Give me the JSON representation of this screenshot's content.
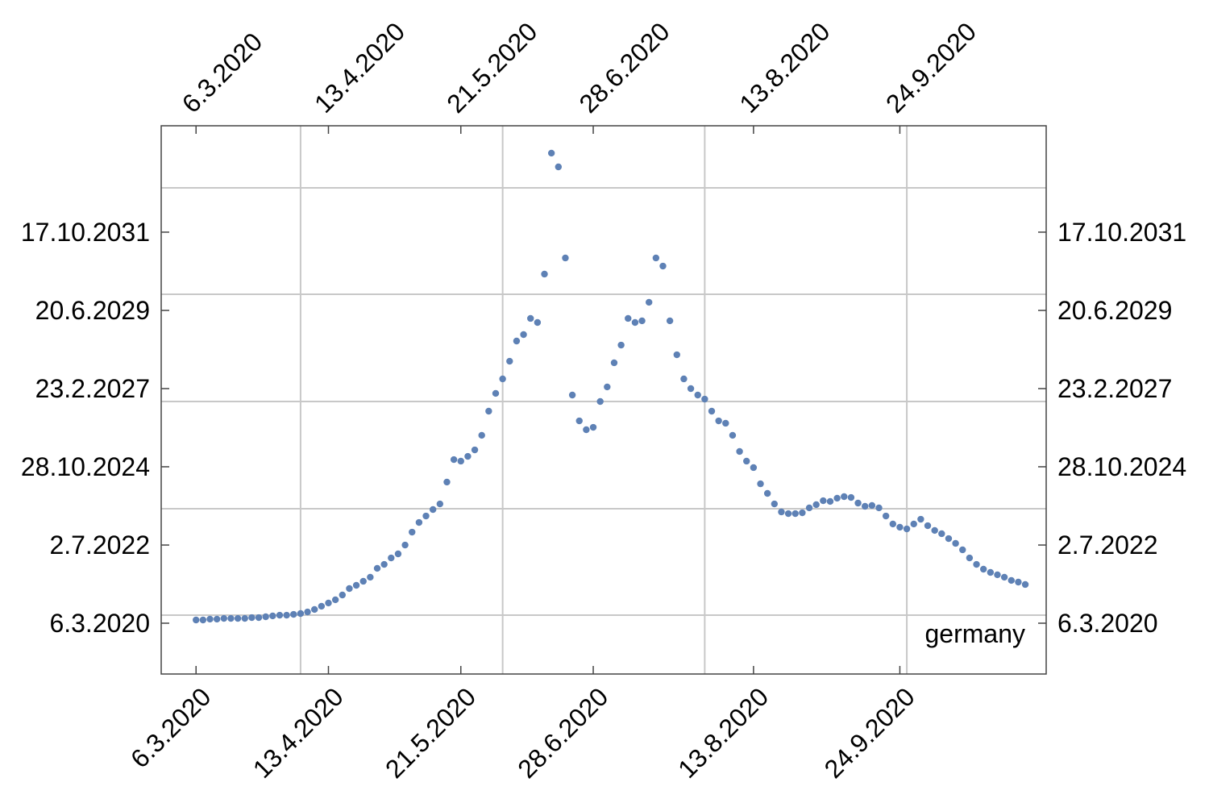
{
  "chart_data": {
    "type": "scatter",
    "annotation": "germany",
    "color": "#5e81b5",
    "xlim": [
      -10,
      244
    ],
    "ylim": [
      -551,
      5396
    ],
    "xticks": [
      {
        "value": 0,
        "label": "6.3.2020"
      },
      {
        "value": 38,
        "label": "13.4.2020"
      },
      {
        "value": 76,
        "label": "21.5.2020"
      },
      {
        "value": 114,
        "label": "28.6.2020"
      },
      {
        "value": 160,
        "label": "13.8.2020"
      },
      {
        "value": 202,
        "label": "24.9.2020"
      }
    ],
    "yticks": [
      {
        "value": 0,
        "label": "6.3.2020"
      },
      {
        "value": 848,
        "label": "2.7.2022"
      },
      {
        "value": 1697,
        "label": "28.10.2024"
      },
      {
        "value": 2545,
        "label": "23.2.2027"
      },
      {
        "value": 3393,
        "label": "20.6.2029"
      },
      {
        "value": 4242,
        "label": "17.10.2031"
      }
    ],
    "xgrid": [
      30,
      88,
      146,
      204
    ],
    "ygrid": [
      87,
      1242,
      2405,
      3568,
      4723
    ],
    "x": [
      0,
      2,
      4,
      6,
      8,
      10,
      12,
      14,
      16,
      18,
      20,
      22,
      24,
      26,
      28,
      30,
      32,
      34,
      36,
      38,
      40,
      42,
      44,
      46,
      48,
      50,
      52,
      54,
      56,
      58,
      60,
      62,
      64,
      66,
      68,
      70,
      72,
      74,
      76,
      78,
      80,
      82,
      84,
      86,
      88,
      90,
      92,
      94,
      96,
      98,
      100,
      102,
      104,
      106,
      108,
      110,
      112,
      114,
      116,
      118,
      120,
      122,
      124,
      126,
      128,
      130,
      132,
      134,
      136,
      138,
      140,
      142,
      144,
      146,
      148,
      150,
      152,
      154,
      156,
      158,
      160,
      162,
      164,
      166,
      168,
      170,
      172,
      174,
      176,
      178,
      180,
      182,
      184,
      186,
      188,
      190,
      192,
      194,
      196,
      198,
      200,
      202,
      204,
      206,
      208,
      210,
      212,
      214,
      216,
      218,
      220,
      222,
      224,
      226,
      228,
      230,
      232,
      234,
      236,
      238
    ],
    "values": [
      35,
      35,
      44,
      44,
      52,
      52,
      52,
      52,
      61,
      61,
      70,
      79,
      87,
      87,
      96,
      105,
      122,
      149,
      184,
      219,
      254,
      306,
      376,
      411,
      455,
      499,
      595,
      638,
      708,
      752,
      848,
      988,
      1093,
      1163,
      1233,
      1294,
      1531,
      1775,
      1758,
      1810,
      1880,
      2038,
      2300,
      2493,
      2650,
      2842,
      3061,
      3131,
      3306,
      3262,
      3787,
      5099,
      4950,
      3962,
      2475,
      2195,
      2099,
      2125,
      2405,
      2563,
      2825,
      3017,
      3306,
      3262,
      3280,
      3481,
      3962,
      3874,
      3280,
      2912,
      2650,
      2545,
      2475,
      2431,
      2300,
      2195,
      2169,
      2038,
      1863,
      1758,
      1688,
      1512,
      1408,
      1294,
      1207,
      1189,
      1189,
      1198,
      1251,
      1286,
      1329,
      1321,
      1356,
      1373,
      1364,
      1303,
      1268,
      1277,
      1251,
      1163,
      1076,
      1041,
      1023,
      1076,
      1128,
      1058,
      1006,
      971,
      918,
      866,
      796,
      708,
      638,
      586,
      551,
      525,
      499,
      464,
      446,
      420
    ]
  }
}
